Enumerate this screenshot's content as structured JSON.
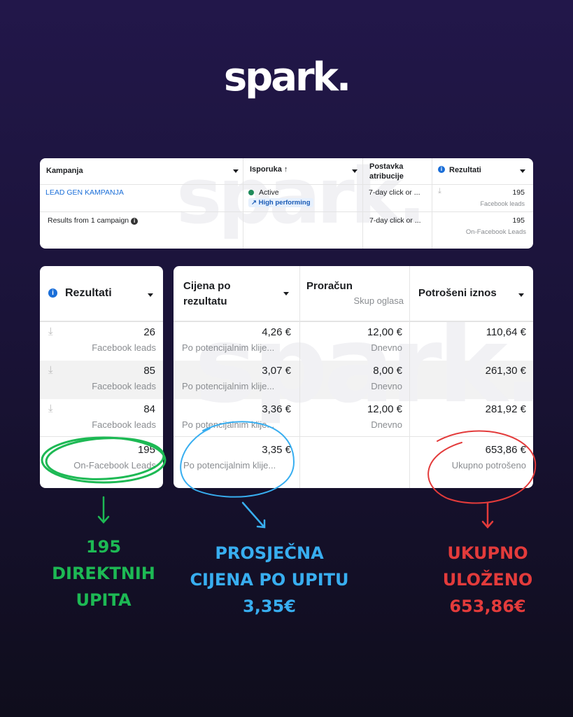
{
  "logo": "spark.",
  "top_table": {
    "headers": {
      "campaign": "Kampanja",
      "delivery": "Isporuka ↑",
      "attribution": "Postavka atribucije",
      "results": "Rezultati"
    },
    "row1": {
      "campaign": "LEAD GEN KAMPANJA",
      "status": "Active",
      "badge": "High performing",
      "attribution": "7-day click or ...",
      "results": "195",
      "results_sub": "Facebook leads"
    },
    "summary": {
      "label": "Results from 1 campaign",
      "attribution": "7-day click or ...",
      "results": "195",
      "results_sub": "On-Facebook Leads"
    }
  },
  "left_table": {
    "header": "Rezultati",
    "rows": [
      {
        "value": "26",
        "sub": "Facebook leads"
      },
      {
        "value": "85",
        "sub": "Facebook leads"
      },
      {
        "value": "84",
        "sub": "Facebook leads"
      }
    ],
    "total": {
      "value": "195",
      "sub": "On-Facebook Leads"
    }
  },
  "right_table": {
    "headers": {
      "cost": "Cijena po rezultatu",
      "budget": "Proračun",
      "budget_sub": "Skup oglasa",
      "spent": "Potrošeni iznos"
    },
    "rows": [
      {
        "cost": "4,26 €",
        "cost_sub": "Po potencijalnim klije...",
        "budget": "12,00 €",
        "budget_sub": "Dnevno",
        "spent": "110,64 €"
      },
      {
        "cost": "3,07 €",
        "cost_sub": "Po potencijalnim klije...",
        "budget": "8,00 €",
        "budget_sub": "Dnevno",
        "spent": "261,30 €"
      },
      {
        "cost": "3,36 €",
        "cost_sub": "Po potencijalnim klije...",
        "budget": "12,00 €",
        "budget_sub": "Dnevno",
        "spent": "281,92 €"
      }
    ],
    "total": {
      "cost": "3,35 €",
      "cost_sub": "Po potencijalnim klije...",
      "spent": "653,86 €",
      "spent_sub": "Ukupno potrošeno"
    }
  },
  "annotations": {
    "green": [
      "195",
      "DIREKTNIH",
      "UPITA"
    ],
    "blue": [
      "PROSJEČNA",
      "CIJENA PO UPITU",
      "3,35€"
    ],
    "red": [
      "UKUPNO",
      "ULOŽENO",
      "653,86€"
    ]
  },
  "colors": {
    "green": "#1db954",
    "blue": "#38aef0",
    "red": "#e33b3b",
    "link": "#1a6ed8",
    "active": "#1e8a5a"
  }
}
